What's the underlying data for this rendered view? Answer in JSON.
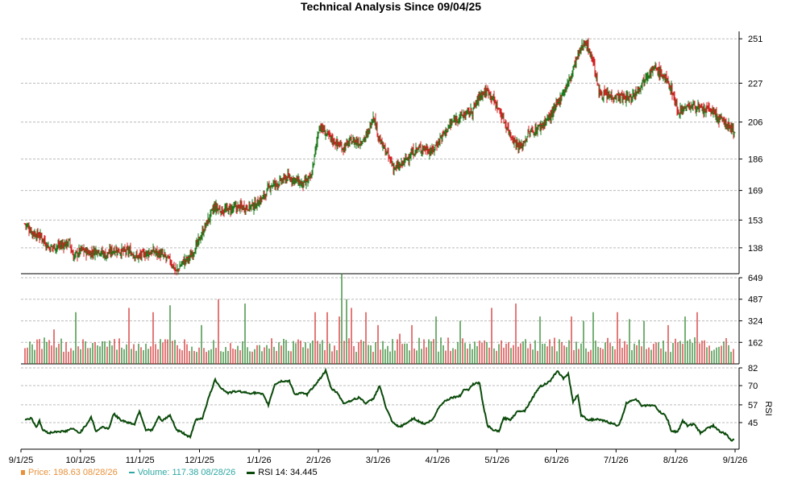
{
  "chart_data": {
    "title": "Technical Analysis Since 09/04/25",
    "x_tick_labels": [
      "9/1/25",
      "10/1/25",
      "11/1/25",
      "12/1/25",
      "1/1/26",
      "2/1/26",
      "3/1/26",
      "4/1/26",
      "5/1/26",
      "6/1/26",
      "7/1/26",
      "8/1/26",
      "9/1/26"
    ],
    "colors": {
      "up": "#1a7a1a",
      "down": "#d02020",
      "grid": "#bbbbbb",
      "rsi": "#0a4a0a"
    },
    "panels": [
      {
        "name": "price",
        "type": "ohlc",
        "ylim": [
          124,
          255
        ],
        "yticks": [
          138,
          153,
          169,
          186,
          206,
          227,
          251
        ],
        "anchors": [
          [
            0,
            151
          ],
          [
            10,
            146
          ],
          [
            20,
            144
          ],
          [
            30,
            138
          ],
          [
            40,
            139
          ],
          [
            50,
            140
          ],
          [
            55,
            141
          ],
          [
            60,
            133
          ],
          [
            70,
            137
          ],
          [
            80,
            135
          ],
          [
            90,
            137
          ],
          [
            100,
            134
          ],
          [
            110,
            137
          ],
          [
            120,
            136
          ],
          [
            130,
            136
          ],
          [
            140,
            133
          ],
          [
            150,
            135
          ],
          [
            160,
            136
          ],
          [
            170,
            134
          ],
          [
            180,
            131
          ],
          [
            188,
            125
          ],
          [
            195,
            130
          ],
          [
            205,
            133
          ],
          [
            215,
            141
          ],
          [
            225,
            151
          ],
          [
            235,
            160
          ],
          [
            245,
            158
          ],
          [
            255,
            159
          ],
          [
            265,
            160
          ],
          [
            275,
            160
          ],
          [
            285,
            161
          ],
          [
            295,
            165
          ],
          [
            305,
            172
          ],
          [
            315,
            173
          ],
          [
            325,
            176
          ],
          [
            335,
            175
          ],
          [
            345,
            172
          ],
          [
            355,
            176
          ],
          [
            365,
            204
          ],
          [
            375,
            199
          ],
          [
            385,
            195
          ],
          [
            395,
            192
          ],
          [
            405,
            196
          ],
          [
            415,
            195
          ],
          [
            425,
            199
          ],
          [
            432,
            210
          ],
          [
            440,
            196
          ],
          [
            450,
            188
          ],
          [
            458,
            181
          ],
          [
            465,
            182
          ],
          [
            475,
            187
          ],
          [
            485,
            191
          ],
          [
            495,
            192
          ],
          [
            505,
            190
          ],
          [
            515,
            197
          ],
          [
            525,
            203
          ],
          [
            535,
            208
          ],
          [
            545,
            210
          ],
          [
            555,
            212
          ],
          [
            565,
            221
          ],
          [
            575,
            223
          ],
          [
            585,
            215
          ],
          [
            595,
            206
          ],
          [
            605,
            197
          ],
          [
            615,
            192
          ],
          [
            625,
            200
          ],
          [
            635,
            202
          ],
          [
            645,
            206
          ],
          [
            655,
            211
          ],
          [
            665,
            220
          ],
          [
            675,
            228
          ],
          [
            685,
            241
          ],
          [
            695,
            250
          ],
          [
            705,
            239
          ],
          [
            712,
            222
          ],
          [
            722,
            220
          ],
          [
            732,
            220
          ],
          [
            742,
            219
          ],
          [
            752,
            219
          ],
          [
            762,
            225
          ],
          [
            772,
            232
          ],
          [
            782,
            235
          ],
          [
            792,
            231
          ],
          [
            802,
            224
          ],
          [
            810,
            212
          ],
          [
            820,
            214
          ],
          [
            830,
            215
          ],
          [
            840,
            212
          ],
          [
            850,
            213
          ],
          [
            860,
            208
          ],
          [
            870,
            205
          ],
          [
            880,
            201
          ]
        ]
      },
      {
        "name": "volume",
        "type": "bar",
        "ylim": [
          0,
          649
        ],
        "yticks": [
          162,
          324,
          487,
          649
        ],
        "spikes": [
          [
            36,
            40
          ],
          [
            65,
            60
          ],
          [
            130,
            65
          ],
          [
            160,
            60
          ],
          [
            180,
            68
          ],
          [
            220,
            45
          ],
          [
            240,
            75
          ],
          [
            275,
            70
          ],
          [
            360,
            60
          ],
          [
            375,
            60
          ],
          [
            390,
            55
          ],
          [
            395,
            105
          ],
          [
            400,
            75
          ],
          [
            405,
            65
          ],
          [
            423,
            60
          ],
          [
            440,
            45
          ],
          [
            465,
            35
          ],
          [
            480,
            45
          ],
          [
            510,
            55
          ],
          [
            540,
            50
          ],
          [
            580,
            65
          ],
          [
            610,
            70
          ],
          [
            640,
            55
          ],
          [
            680,
            55
          ],
          [
            695,
            50
          ],
          [
            705,
            60
          ],
          [
            735,
            60
          ],
          [
            750,
            52
          ],
          [
            770,
            50
          ],
          [
            800,
            45
          ],
          [
            820,
            55
          ],
          [
            835,
            60
          ]
        ]
      },
      {
        "name": "rsi",
        "type": "line",
        "label": "RSI",
        "ylim": [
          27,
          82
        ],
        "yticks": [
          45,
          57,
          70,
          82
        ],
        "anchors": [
          [
            0,
            47
          ],
          [
            8,
            48
          ],
          [
            14,
            42
          ],
          [
            18,
            46
          ],
          [
            22,
            40
          ],
          [
            30,
            38
          ],
          [
            40,
            39
          ],
          [
            50,
            39
          ],
          [
            58,
            41
          ],
          [
            68,
            38
          ],
          [
            78,
            45
          ],
          [
            82,
            49
          ],
          [
            88,
            39
          ],
          [
            96,
            42
          ],
          [
            104,
            41
          ],
          [
            110,
            51
          ],
          [
            118,
            47
          ],
          [
            128,
            45
          ],
          [
            136,
            44
          ],
          [
            142,
            53
          ],
          [
            150,
            40
          ],
          [
            158,
            40
          ],
          [
            166,
            49
          ],
          [
            170,
            46
          ],
          [
            180,
            50
          ],
          [
            188,
            40
          ],
          [
            196,
            38
          ],
          [
            205,
            35
          ],
          [
            212,
            47
          ],
          [
            220,
            48
          ],
          [
            228,
            62
          ],
          [
            236,
            74
          ],
          [
            244,
            68
          ],
          [
            252,
            65
          ],
          [
            260,
            66
          ],
          [
            268,
            66
          ],
          [
            276,
            65
          ],
          [
            288,
            65
          ],
          [
            295,
            64
          ],
          [
            302,
            57
          ],
          [
            310,
            71
          ],
          [
            318,
            73
          ],
          [
            328,
            73
          ],
          [
            335,
            64
          ],
          [
            342,
            65
          ],
          [
            350,
            64
          ],
          [
            365,
            74
          ],
          [
            373,
            80
          ],
          [
            380,
            68
          ],
          [
            388,
            65
          ],
          [
            395,
            58
          ],
          [
            405,
            60
          ],
          [
            415,
            62
          ],
          [
            423,
            58
          ],
          [
            432,
            61
          ],
          [
            440,
            70
          ],
          [
            448,
            55
          ],
          [
            456,
            45
          ],
          [
            464,
            42
          ],
          [
            472,
            44
          ],
          [
            482,
            48
          ],
          [
            488,
            46
          ],
          [
            496,
            44
          ],
          [
            506,
            47
          ],
          [
            514,
            56
          ],
          [
            522,
            60
          ],
          [
            530,
            62
          ],
          [
            540,
            63
          ],
          [
            545,
            68
          ],
          [
            550,
            67
          ],
          [
            556,
            71
          ],
          [
            564,
            72
          ],
          [
            568,
            58
          ],
          [
            574,
            43
          ],
          [
            580,
            40
          ],
          [
            588,
            39
          ],
          [
            594,
            48
          ],
          [
            602,
            47
          ],
          [
            612,
            53
          ],
          [
            620,
            53
          ],
          [
            630,
            62
          ],
          [
            638,
            69
          ],
          [
            645,
            71
          ],
          [
            652,
            73
          ],
          [
            660,
            80
          ],
          [
            668,
            75
          ],
          [
            674,
            78
          ],
          [
            680,
            59
          ],
          [
            686,
            64
          ],
          [
            690,
            50
          ],
          [
            698,
            47
          ],
          [
            710,
            47
          ],
          [
            720,
            46
          ],
          [
            730,
            44
          ],
          [
            736,
            43
          ],
          [
            740,
            47
          ],
          [
            746,
            58
          ],
          [
            752,
            60
          ],
          [
            758,
            61
          ],
          [
            766,
            56
          ],
          [
            774,
            57
          ],
          [
            782,
            56
          ],
          [
            788,
            52
          ],
          [
            794,
            50
          ],
          [
            798,
            46
          ],
          [
            802,
            39
          ],
          [
            810,
            39
          ],
          [
            816,
            46
          ],
          [
            822,
            43
          ],
          [
            830,
            44
          ],
          [
            838,
            38
          ],
          [
            846,
            41
          ],
          [
            854,
            43
          ],
          [
            862,
            39
          ],
          [
            870,
            37
          ],
          [
            876,
            33
          ],
          [
            880,
            34
          ]
        ]
      }
    ],
    "legend": [
      {
        "key": "price",
        "text": "Price: 198.63  08/28/26",
        "color": "#e8913a"
      },
      {
        "key": "volume",
        "text": "Volume: 117.38  08/28/26",
        "color": "#2fa8a3"
      },
      {
        "key": "rsi",
        "text": "RSI 14: 34.445",
        "color": "#000000"
      }
    ]
  }
}
